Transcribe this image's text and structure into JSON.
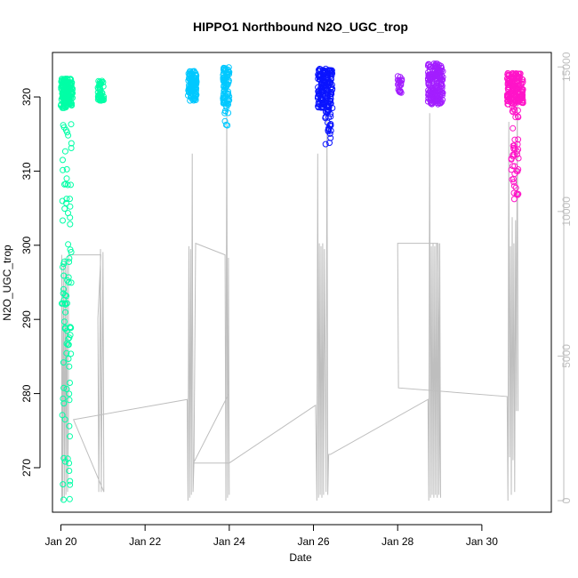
{
  "chart_data": {
    "type": "scatter",
    "title": "HIPPO1 Northbound N2O_UGC_trop",
    "xlabel": "Date",
    "ylabel": "N2O_UGC_trop",
    "x_range_days": [
      19.8,
      31.65
    ],
    "x_ticks": [
      {
        "day": 20,
        "label": "Jan 20"
      },
      {
        "day": 22,
        "label": "Jan 22"
      },
      {
        "day": 24,
        "label": "Jan 24"
      },
      {
        "day": 26,
        "label": "Jan 26"
      },
      {
        "day": 28,
        "label": "Jan 28"
      },
      {
        "day": 30,
        "label": "Jan 30"
      }
    ],
    "ylim": [
      264,
      326
    ],
    "y_ticks": [
      270,
      280,
      290,
      300,
      310,
      320
    ],
    "y2_label": "",
    "y2lim": [
      -400,
      15500
    ],
    "y2_ticks": [
      0,
      5000,
      10000,
      15000
    ],
    "y2_color": "#bebebe",
    "grid": false,
    "legend": "none",
    "series": [
      {
        "color": "#00ffa6",
        "segments": [
          {
            "x": [
              20.0,
              20.28
            ],
            "y": [
              318.5,
              322.5
            ],
            "n": 170
          },
          {
            "x": [
              20.88,
              21.02
            ],
            "y": [
              319.5,
              322.2
            ],
            "n": 45
          }
        ],
        "tail": {
          "x": [
            20.02,
            20.25
          ],
          "y": [
            265.5,
            318.5
          ],
          "n": 90
        }
      },
      {
        "color": "#00c8ff",
        "segments": [
          {
            "x": [
              23.02,
              23.22
            ],
            "y": [
              319.5,
              323.5
            ],
            "n": 110
          },
          {
            "x": [
              23.85,
              24.0
            ],
            "y": [
              319.0,
              324.0
            ],
            "n": 80
          }
        ],
        "tail": {
          "x": [
            23.88,
            23.98
          ],
          "y": [
            316.0,
            319.0
          ],
          "n": 10
        }
      },
      {
        "color": "#0a14ff",
        "segments": [
          {
            "x": [
              26.1,
              26.45
            ],
            "y": [
              318.5,
              323.8
            ],
            "n": 160
          }
        ],
        "tail": {
          "x": [
            26.28,
            26.42
          ],
          "y": [
            313.5,
            318.5
          ],
          "n": 25
        }
      },
      {
        "color": "#a31eff",
        "segments": [
          {
            "x": [
              28.0,
              28.1
            ],
            "y": [
              320.5,
              322.8
            ],
            "n": 25
          },
          {
            "x": [
              28.72,
              29.08
            ],
            "y": [
              319.0,
              324.5
            ],
            "n": 180
          }
        ]
      },
      {
        "color": "#ff14c8",
        "segments": [
          {
            "x": [
              30.6,
              30.98
            ],
            "y": [
              319.0,
              323.2
            ],
            "n": 170
          }
        ],
        "tail": {
          "x": [
            30.7,
            30.88
          ],
          "y": [
            306.0,
            319.0
          ],
          "n": 45
        }
      }
    ],
    "altitude_series": {
      "color": "#bebebe",
      "axis": "right",
      "path": [
        [
          20.02,
          0
        ],
        [
          20.02,
          8500
        ],
        [
          20.04,
          0
        ],
        [
          20.06,
          8200
        ],
        [
          20.08,
          100
        ],
        [
          20.1,
          8400
        ],
        [
          20.12,
          200
        ],
        [
          20.14,
          8300
        ],
        [
          20.16,
          300
        ],
        [
          20.18,
          2900
        ],
        [
          20.18,
          8500
        ],
        [
          20.95,
          8500
        ],
        [
          20.88,
          6300
        ],
        [
          20.9,
          300
        ],
        [
          20.92,
          4000
        ],
        [
          20.94,
          8700
        ],
        [
          20.96,
          300
        ],
        [
          20.98,
          4500
        ],
        [
          21.0,
          8600
        ],
        [
          21.02,
          300
        ],
        [
          20.3,
          2800
        ],
        [
          23.0,
          3500
        ],
        [
          23.02,
          0
        ],
        [
          23.04,
          8800
        ],
        [
          23.06,
          100
        ],
        [
          23.08,
          8700
        ],
        [
          23.1,
          200
        ],
        [
          23.12,
          12000
        ],
        [
          23.14,
          300
        ],
        [
          23.16,
          1300
        ],
        [
          23.2,
          8900
        ],
        [
          23.9,
          8500
        ],
        [
          23.92,
          0
        ],
        [
          23.94,
          13800
        ],
        [
          23.96,
          100
        ],
        [
          23.98,
          8400
        ],
        [
          24.0,
          200
        ],
        [
          23.99,
          3700
        ],
        [
          23.15,
          1300
        ],
        [
          24.0,
          1300
        ],
        [
          26.05,
          3300
        ],
        [
          26.08,
          0
        ],
        [
          26.1,
          12000
        ],
        [
          26.12,
          100
        ],
        [
          26.14,
          8900
        ],
        [
          26.16,
          200
        ],
        [
          26.18,
          8800
        ],
        [
          26.2,
          100
        ],
        [
          26.22,
          8900
        ],
        [
          26.24,
          200
        ],
        [
          26.26,
          8700
        ],
        [
          26.3,
          300
        ],
        [
          26.32,
          13400
        ],
        [
          26.34,
          200
        ],
        [
          26.36,
          1600
        ],
        [
          26.4,
          1600
        ],
        [
          28.72,
          3500
        ],
        [
          28.74,
          0
        ],
        [
          28.76,
          13400
        ],
        [
          28.78,
          100
        ],
        [
          28.8,
          8800
        ],
        [
          28.82,
          200
        ],
        [
          28.84,
          8900
        ],
        [
          28.86,
          100
        ],
        [
          28.88,
          8800
        ],
        [
          28.9,
          200
        ],
        [
          28.92,
          8900
        ],
        [
          28.94,
          100
        ],
        [
          28.96,
          8900
        ],
        [
          28.98,
          200
        ],
        [
          29.0,
          8900
        ],
        [
          29.02,
          100
        ],
        [
          28.95,
          8900
        ],
        [
          28.0,
          8900
        ],
        [
          28.02,
          3900
        ],
        [
          30.6,
          3600
        ],
        [
          30.62,
          0
        ],
        [
          30.64,
          13100
        ],
        [
          30.66,
          1500
        ],
        [
          30.68,
          8800
        ],
        [
          30.7,
          200
        ],
        [
          30.72,
          9800
        ],
        [
          30.74,
          1400
        ],
        [
          30.76,
          8900
        ],
        [
          30.78,
          300
        ],
        [
          30.8,
          9700
        ],
        [
          30.82,
          3100
        ],
        [
          30.84,
          14200
        ],
        [
          30.86,
          3100
        ]
      ]
    }
  }
}
